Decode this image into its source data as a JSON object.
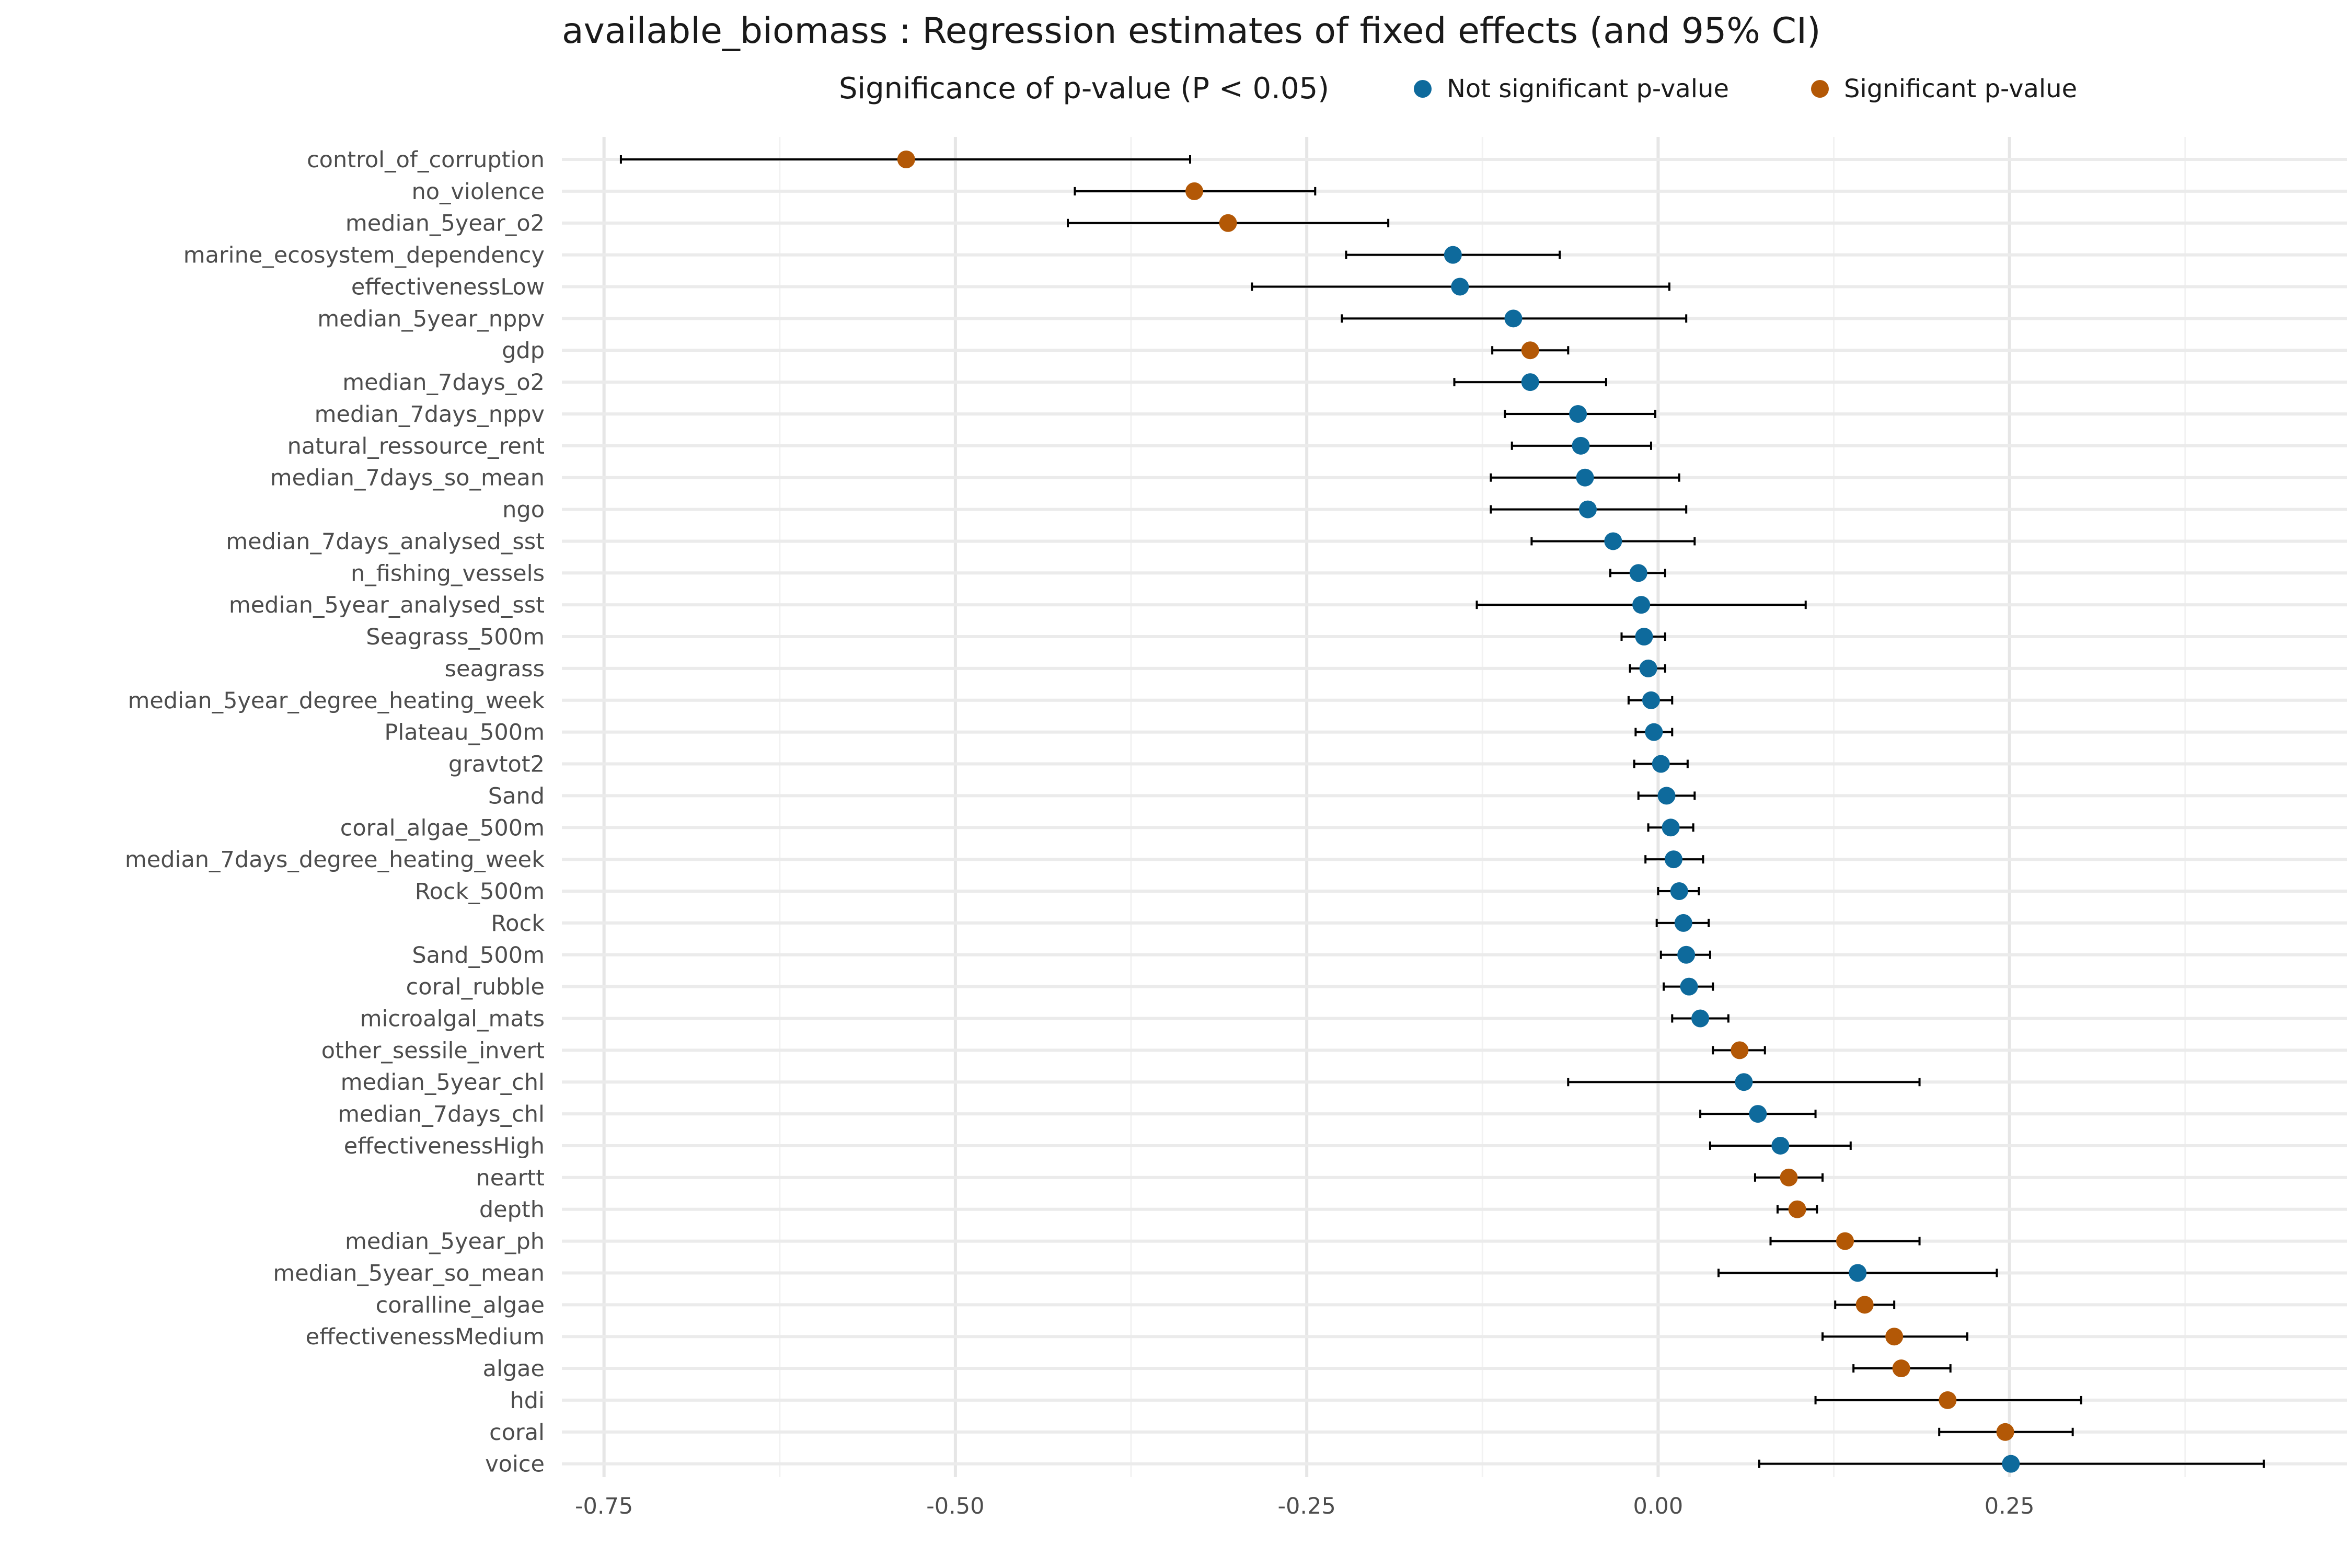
{
  "chart_data": {
    "type": "scatter",
    "subtype": "forest-plot",
    "title": "available_biomass : Regression estimates of fixed effects (and 95% CI)",
    "legend": {
      "title": "Significance of p-value (P < 0.05)",
      "placement": "top",
      "entries": [
        {
          "key": "not_sig",
          "label": "Not significant p-value",
          "color": "#0e6a9c"
        },
        {
          "key": "sig",
          "label": "Significant p-value",
          "color": "#b35806"
        }
      ]
    },
    "xlim": [
      -0.78,
      0.49
    ],
    "x_ticks": [
      {
        "value": -0.75,
        "label": "-0.75"
      },
      {
        "value": -0.5,
        "label": "-0.50"
      },
      {
        "value": -0.25,
        "label": "-0.25"
      },
      {
        "value": 0.0,
        "label": "0.00"
      },
      {
        "value": 0.25,
        "label": "0.25"
      }
    ],
    "x_minor_gridlines": [
      -0.625,
      -0.375,
      -0.125,
      0.125,
      0.375
    ],
    "grid": true,
    "error_color": "#000000",
    "estimates": [
      {
        "term": "control_of_corruption",
        "estimate": -0.535,
        "lower": -0.738,
        "upper": -0.333,
        "significant": true
      },
      {
        "term": "no_violence",
        "estimate": -0.33,
        "lower": -0.415,
        "upper": -0.244,
        "significant": true
      },
      {
        "term": "median_5year_o2",
        "estimate": -0.306,
        "lower": -0.42,
        "upper": -0.192,
        "significant": true
      },
      {
        "term": "marine_ecosystem_dependency",
        "estimate": -0.146,
        "lower": -0.222,
        "upper": -0.07,
        "significant": false
      },
      {
        "term": "effectivenessLow",
        "estimate": -0.141,
        "lower": -0.289,
        "upper": 0.008,
        "significant": false
      },
      {
        "term": "median_5year_nppv",
        "estimate": -0.103,
        "lower": -0.225,
        "upper": 0.02,
        "significant": false
      },
      {
        "term": "gdp",
        "estimate": -0.091,
        "lower": -0.118,
        "upper": -0.064,
        "significant": true
      },
      {
        "term": "median_7days_o2",
        "estimate": -0.091,
        "lower": -0.145,
        "upper": -0.037,
        "significant": false
      },
      {
        "term": "median_7days_nppv",
        "estimate": -0.057,
        "lower": -0.109,
        "upper": -0.002,
        "significant": false
      },
      {
        "term": "natural_ressource_rent",
        "estimate": -0.055,
        "lower": -0.104,
        "upper": -0.005,
        "significant": false
      },
      {
        "term": "median_7days_so_mean",
        "estimate": -0.052,
        "lower": -0.119,
        "upper": 0.015,
        "significant": false
      },
      {
        "term": "ngo",
        "estimate": -0.05,
        "lower": -0.119,
        "upper": 0.02,
        "significant": false
      },
      {
        "term": "median_7days_analysed_sst",
        "estimate": -0.032,
        "lower": -0.09,
        "upper": 0.026,
        "significant": false
      },
      {
        "term": "n_fishing_vessels",
        "estimate": -0.014,
        "lower": -0.034,
        "upper": 0.005,
        "significant": false
      },
      {
        "term": "median_5year_analysed_sst",
        "estimate": -0.012,
        "lower": -0.129,
        "upper": 0.105,
        "significant": false
      },
      {
        "term": "Seagrass_500m",
        "estimate": -0.01,
        "lower": -0.026,
        "upper": 0.005,
        "significant": false
      },
      {
        "term": "seagrass",
        "estimate": -0.007,
        "lower": -0.02,
        "upper": 0.005,
        "significant": false
      },
      {
        "term": "median_5year_degree_heating_week",
        "estimate": -0.005,
        "lower": -0.021,
        "upper": 0.01,
        "significant": false
      },
      {
        "term": "Plateau_500m",
        "estimate": -0.003,
        "lower": -0.016,
        "upper": 0.01,
        "significant": false
      },
      {
        "term": "gravtot2",
        "estimate": 0.002,
        "lower": -0.017,
        "upper": 0.021,
        "significant": false
      },
      {
        "term": "Sand",
        "estimate": 0.006,
        "lower": -0.014,
        "upper": 0.026,
        "significant": false
      },
      {
        "term": "coral_algae_500m",
        "estimate": 0.009,
        "lower": -0.007,
        "upper": 0.025,
        "significant": false
      },
      {
        "term": "median_7days_degree_heating_week",
        "estimate": 0.011,
        "lower": -0.009,
        "upper": 0.032,
        "significant": false
      },
      {
        "term": "Rock_500m",
        "estimate": 0.015,
        "lower": 0.0,
        "upper": 0.029,
        "significant": false
      },
      {
        "term": "Rock",
        "estimate": 0.018,
        "lower": -0.001,
        "upper": 0.036,
        "significant": false
      },
      {
        "term": "Sand_500m",
        "estimate": 0.02,
        "lower": 0.002,
        "upper": 0.037,
        "significant": false
      },
      {
        "term": "coral_rubble",
        "estimate": 0.022,
        "lower": 0.004,
        "upper": 0.039,
        "significant": false
      },
      {
        "term": "microalgal_mats",
        "estimate": 0.03,
        "lower": 0.01,
        "upper": 0.05,
        "significant": false
      },
      {
        "term": "other_sessile_invert",
        "estimate": 0.058,
        "lower": 0.039,
        "upper": 0.076,
        "significant": true
      },
      {
        "term": "median_5year_chl",
        "estimate": 0.061,
        "lower": -0.064,
        "upper": 0.186,
        "significant": false
      },
      {
        "term": "median_7days_chl",
        "estimate": 0.071,
        "lower": 0.03,
        "upper": 0.112,
        "significant": false
      },
      {
        "term": "effectivenessHigh",
        "estimate": 0.087,
        "lower": 0.037,
        "upper": 0.137,
        "significant": false
      },
      {
        "term": "neartt",
        "estimate": 0.093,
        "lower": 0.069,
        "upper": 0.117,
        "significant": true
      },
      {
        "term": "depth",
        "estimate": 0.099,
        "lower": 0.085,
        "upper": 0.113,
        "significant": true
      },
      {
        "term": "median_5year_ph",
        "estimate": 0.133,
        "lower": 0.08,
        "upper": 0.186,
        "significant": true
      },
      {
        "term": "median_5year_so_mean",
        "estimate": 0.142,
        "lower": 0.043,
        "upper": 0.241,
        "significant": false
      },
      {
        "term": "coralline_algae",
        "estimate": 0.147,
        "lower": 0.126,
        "upper": 0.168,
        "significant": true
      },
      {
        "term": "effectivenessMedium",
        "estimate": 0.168,
        "lower": 0.117,
        "upper": 0.22,
        "significant": true
      },
      {
        "term": "algae",
        "estimate": 0.173,
        "lower": 0.139,
        "upper": 0.208,
        "significant": true
      },
      {
        "term": "hdi",
        "estimate": 0.206,
        "lower": 0.112,
        "upper": 0.301,
        "significant": true
      },
      {
        "term": "coral",
        "estimate": 0.247,
        "lower": 0.2,
        "upper": 0.295,
        "significant": true
      },
      {
        "term": "voice",
        "estimate": 0.251,
        "lower": 0.072,
        "upper": 0.431,
        "significant": false
      }
    ]
  }
}
